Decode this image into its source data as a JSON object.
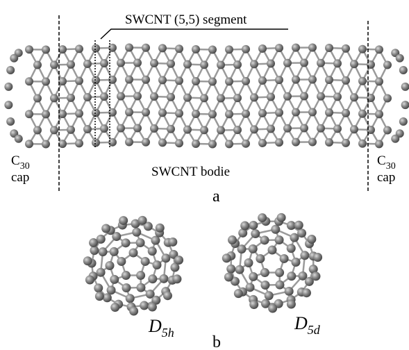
{
  "panel_a": {
    "segment_label": "SWCNT (5,5) segment",
    "body_label": "SWCNT bodie",
    "left_cap": {
      "base": "C",
      "sub": "30",
      "word": "cap"
    },
    "right_cap": {
      "base": "C",
      "sub": "30",
      "word": "cap"
    },
    "panel_letter": "a"
  },
  "panel_b": {
    "left": {
      "base": "D",
      "sub": "5h"
    },
    "right": {
      "base": "D",
      "sub": "5d"
    },
    "panel_letter": "b"
  }
}
